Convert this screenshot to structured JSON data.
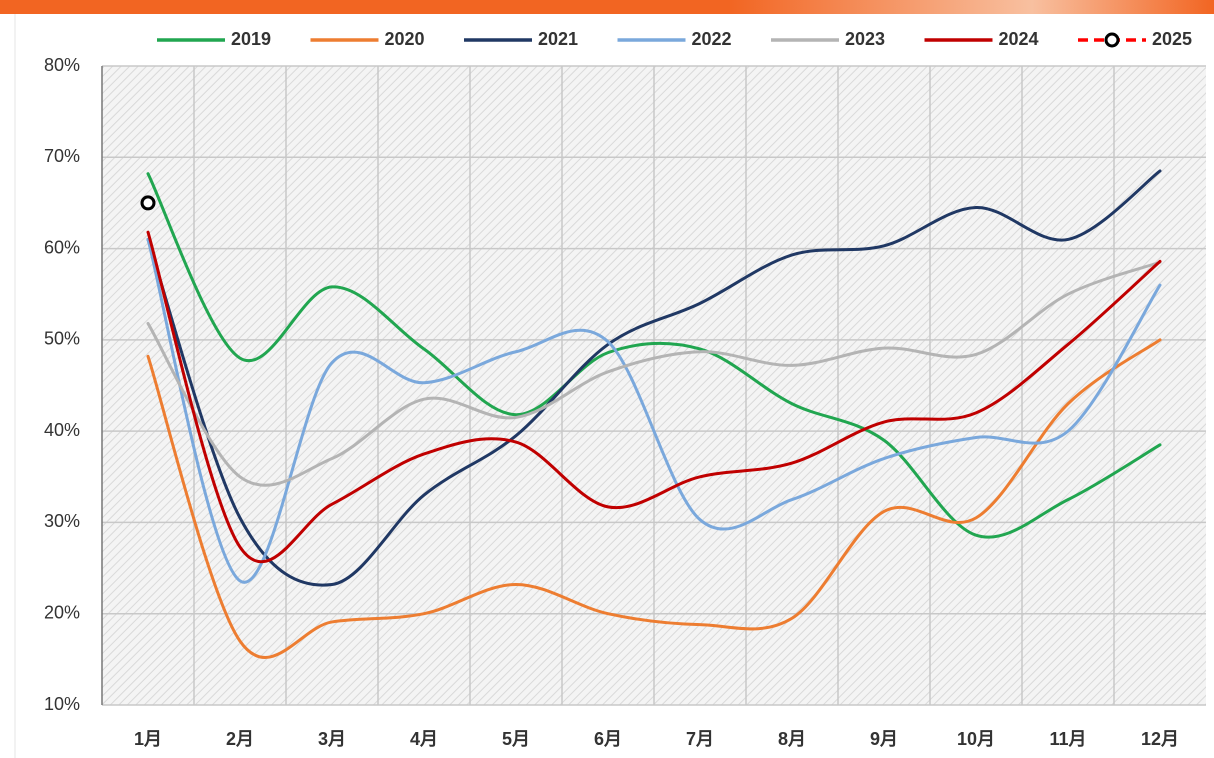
{
  "chart_data": {
    "type": "line",
    "categories": [
      "1月",
      "2月",
      "3月",
      "4月",
      "5月",
      "6月",
      "7月",
      "8月",
      "9月",
      "10月",
      "11月",
      "12月"
    ],
    "series": [
      {
        "name": "2019",
        "color": "#21a650",
        "values": [
          68.2,
          48,
          55.8,
          49,
          41.8,
          48.6,
          49,
          43,
          39,
          28.6,
          32.5,
          38.5
        ]
      },
      {
        "name": "2020",
        "color": "#ed7d31",
        "values": [
          48.2,
          17,
          19.1,
          20,
          23.2,
          20,
          18.8,
          19.5,
          31.2,
          30.5,
          43,
          50
        ]
      },
      {
        "name": "2021",
        "color": "#203864",
        "values": [
          61,
          30.5,
          23.2,
          33,
          39.5,
          49.5,
          54,
          59.3,
          60.3,
          64.5,
          61,
          68.5
        ]
      },
      {
        "name": "2022",
        "color": "#7aa8dc",
        "values": [
          61,
          23.6,
          47.5,
          45.3,
          48.7,
          49.8,
          30.3,
          32.5,
          37,
          39.3,
          40,
          56
        ]
      },
      {
        "name": "2023",
        "color": "#b4b4b4",
        "values": [
          51.8,
          35,
          37,
          43.5,
          41.5,
          46.5,
          48.7,
          47.2,
          49.1,
          48.4,
          55,
          58.5
        ]
      },
      {
        "name": "2024",
        "color": "#c00000",
        "values": [
          61.8,
          27.3,
          32,
          37.5,
          38.8,
          31.7,
          35,
          36.5,
          41,
          42,
          49.5,
          58.6
        ]
      },
      {
        "name": "2025",
        "color": "#ff0000",
        "dashed": true,
        "values": [
          65,
          null,
          null,
          null,
          null,
          null,
          null,
          null,
          null,
          null,
          null,
          null
        ]
      }
    ],
    "ylim": [
      10,
      80
    ],
    "yticks": [
      {
        "value": 10,
        "label": "10%"
      },
      {
        "value": 20,
        "label": "20%"
      },
      {
        "value": 30,
        "label": "30%"
      },
      {
        "value": 40,
        "label": "40%"
      },
      {
        "value": 50,
        "label": "50%"
      },
      {
        "value": 60,
        "label": "60%"
      },
      {
        "value": 70,
        "label": "70%"
      },
      {
        "value": 80,
        "label": "80%"
      }
    ],
    "grid": true,
    "legend": "top"
  }
}
